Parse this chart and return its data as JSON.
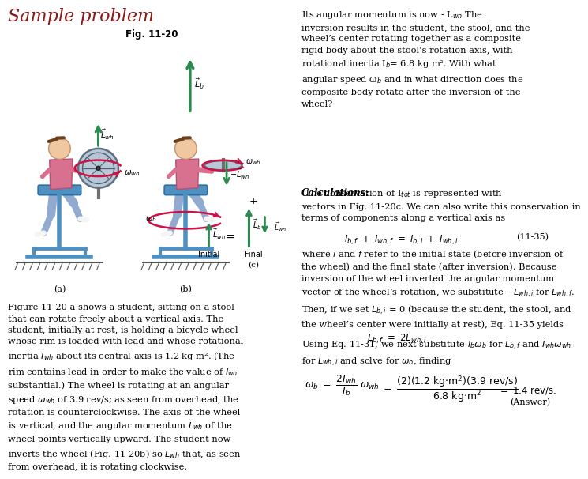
{
  "title": "Sample problem",
  "title_color": "#8b1a1a",
  "title_fontsize": 16,
  "bg_color": "#ffffff",
  "fig_label": "Fig. 11-20",
  "fig_bg_color": "#ddd8cc",
  "top_right_para": "Its angular momentum is now - L_wh. The\ninversion results in the student, the stool, and the\nwheel’s center rotating together as a composite\nrigid body about the stool’s rotation axis, with\nrotational inertia I_b= 6.8 kg m². With what\nangular speed ω_b and in what direction does the\ncomposite body rotate after the inversion of the\nwheel?",
  "calc_label": "Calculations:",
  "calc_body": "The conservation of I_tot is represented with\nvectors in Fig. 11-20c. We can also write this conservation in\nterms of components along a vertical axis as",
  "eq1_left": "I_{b,f} + I_{wh,f} = I_{b,i} + I_{wh,i}",
  "eq1_right": "(11-35)",
  "br_text1": "where i and f refer to the initial state (before inversion of\nthe wheel) and the final state (after inversion). Because\ninversion of the wheel inverted the angular momentum\nvector of the wheel’s rotation, we substitute −L_{wh,i} for L_{wh,f}.\nThen, if we set L_{b,i} = 0 (because the student, the stool, and\nthe wheel’s center were initially at rest), Eq. 11-35 yields",
  "eq2": "L_{b,f} - 2L_{wh,i}",
  "br_text2": "Using Eq. 11-31, we next substitute I_bω_b for I_{b,f} and I_whω_wh\nfor L_{wh,i} and solve for ω_b, finding",
  "eq3_num": "(2)(1.2 kg·m²)(3.9 rev/s)",
  "eq3_den": "6.8 kg·m²",
  "eq3_result": "= 1.4 rev/s.",
  "eq3_answer": "(Answer)",
  "bottom_left_text": "Figure 11-20 a shows a student, sitting on a stool\nthat can rotate freely about a vertical axis. The\nstudent, initially at rest, is holding a bicycle wheel\nwhose rim is loaded with lead and whose rotational\ninertia I_wh about its central axis is 1.2 kg m². (The\nrim contains lead in order to make the value of I_wh\nsubstantial.) The wheel is rotating at an angular\nspeed ω_wh of 3.9 rev/s; as seen from overhead, the\nrotation is counterclockwise. The axis of the wheel\nis vertical, and the angular momentum L_wh of the\nwheel points vertically upward. The student now\ninverts the wheel (Fig. 11-20b) so L_wh that, as seen\nfrom overhead, it is rotating clockwise.",
  "text_color": "#000000",
  "serif_font": "DejaVu Serif",
  "mono_font": "DejaVu Sans Mono"
}
